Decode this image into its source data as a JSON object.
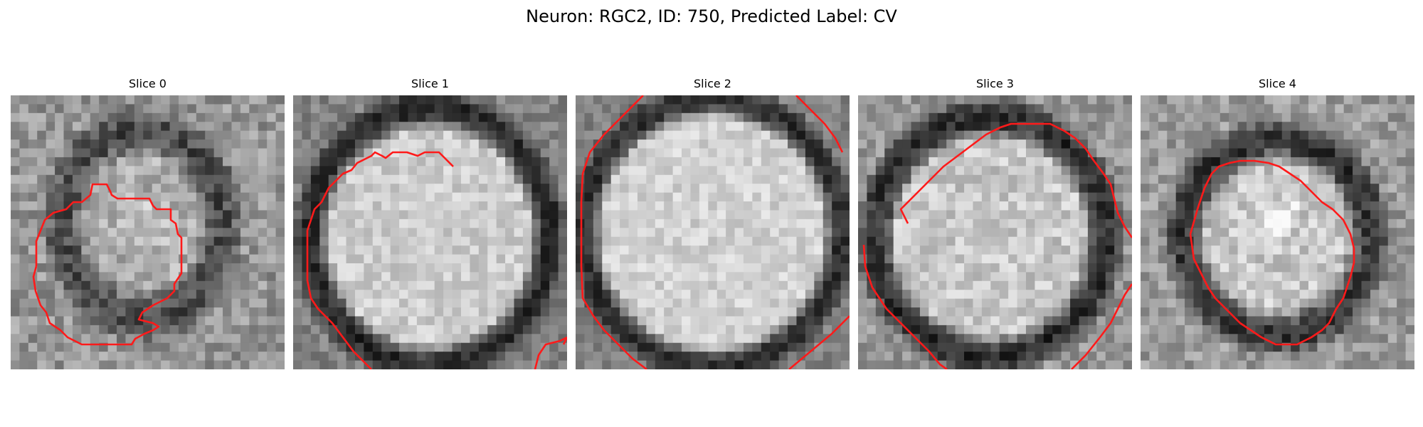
{
  "title": "Neuron: RGC2, ID: 750, Predicted Label: CV",
  "slices": [
    {
      "label": "Slice 0"
    },
    {
      "label": "Slice 1"
    },
    {
      "label": "Slice 2"
    },
    {
      "label": "Slice 3"
    },
    {
      "label": "Slice 4"
    }
  ],
  "colors": {
    "contour": "#ff1a1a",
    "background": "#ffffff"
  }
}
